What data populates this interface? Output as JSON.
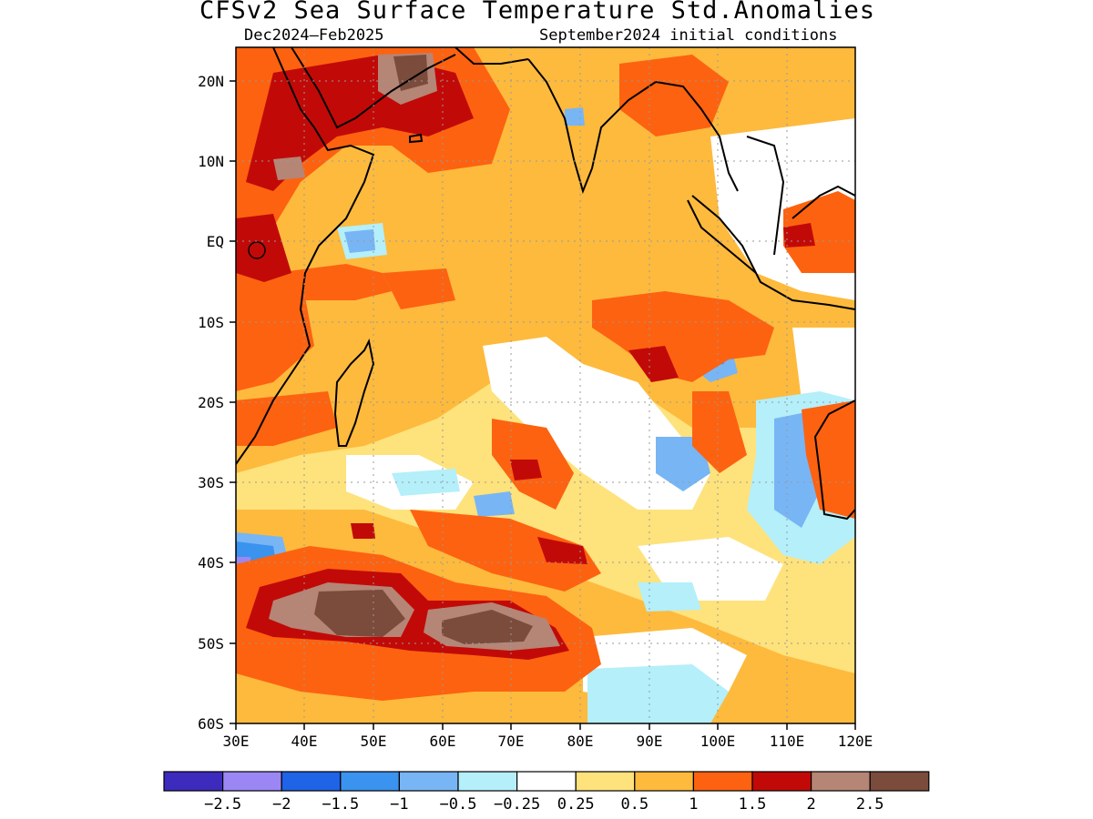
{
  "title": "CFSv2 Sea Surface Temperature Std.Anomalies",
  "period": "Dec2024–Feb2025",
  "init": "September2024 initial conditions",
  "axes": {
    "lat_labels": [
      "20N",
      "10N",
      "EQ",
      "10S",
      "20S",
      "30S",
      "40S",
      "50S",
      "60S"
    ],
    "lon_labels": [
      "30E",
      "40E",
      "50E",
      "60E",
      "70E",
      "80E",
      "90E",
      "100E",
      "110E",
      "120E"
    ],
    "lat_range": [
      "60S",
      "24N"
    ],
    "lon_range": [
      "30E",
      "120E"
    ],
    "grid": "dotted"
  },
  "colorbar": {
    "labels": [
      "−2.5",
      "−2",
      "−1.5",
      "−1",
      "−0.5",
      "−0.25",
      "0.25",
      "0.5",
      "1",
      "1.5",
      "2",
      "2.5"
    ],
    "colors": [
      "#3d2bbd",
      "#9b87f3",
      "#1f63e6",
      "#3a93ee",
      "#78b5f5",
      "#b4effa",
      "#ffffff",
      "#fee27c",
      "#fdba3d",
      "#fd6210",
      "#c10a08",
      "#b58576",
      "#7b4b3c"
    ]
  }
}
